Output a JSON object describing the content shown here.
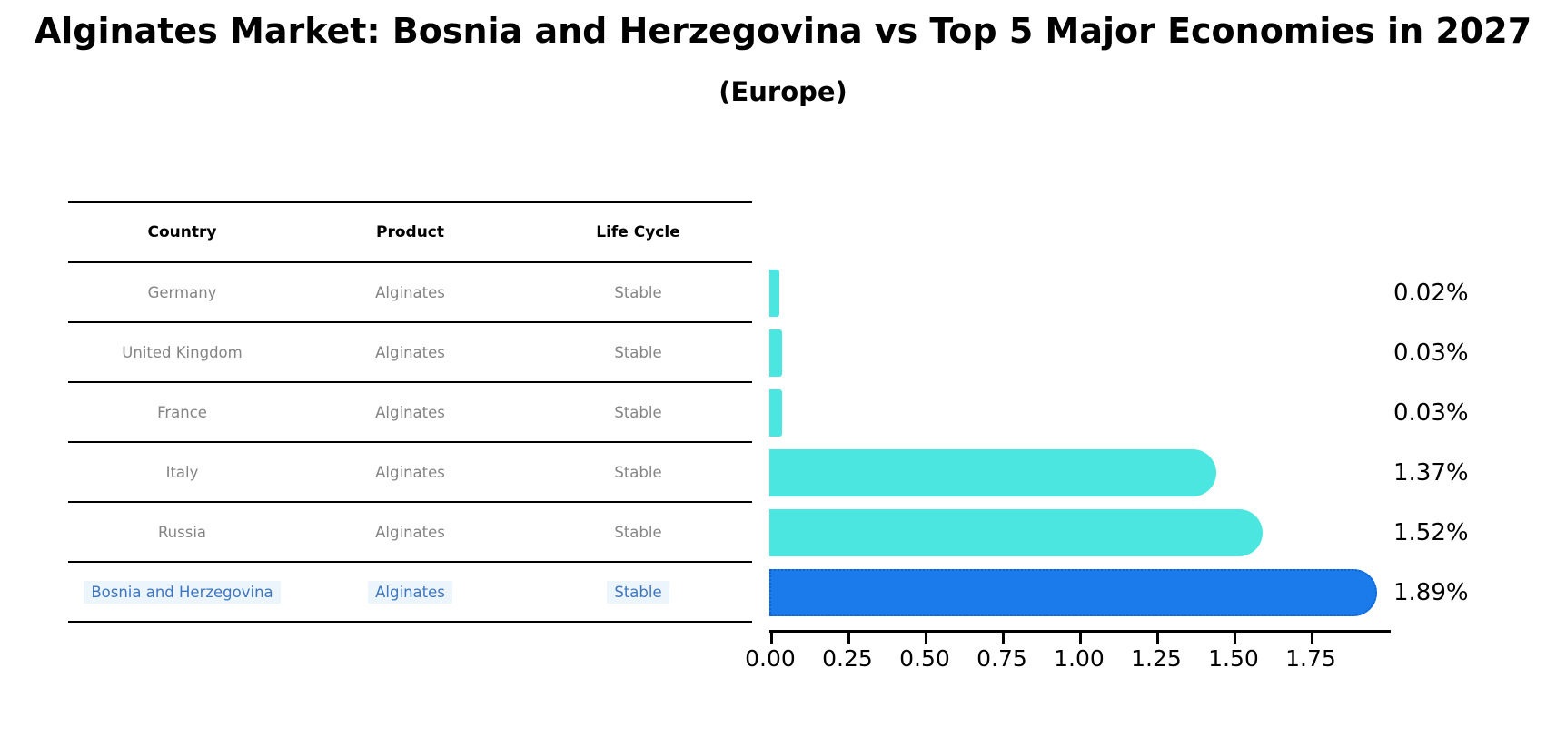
{
  "title": "Alginates Market: Bosnia and Herzegovina vs Top 5 Major Economies in 2027",
  "subtitle": "(Europe)",
  "table": {
    "headers": [
      "Country",
      "Product",
      "Life Cycle"
    ],
    "rows": [
      {
        "country": "Germany",
        "product": "Alginates",
        "life_cycle": "Stable",
        "highlight": false
      },
      {
        "country": "United Kingdom",
        "product": "Alginates",
        "life_cycle": "Stable",
        "highlight": false
      },
      {
        "country": "France",
        "product": "Alginates",
        "life_cycle": "Stable",
        "highlight": false
      },
      {
        "country": "Italy",
        "product": "Alginates",
        "life_cycle": "Stable",
        "highlight": false
      },
      {
        "country": "Russia",
        "product": "Alginates",
        "life_cycle": "Stable",
        "highlight": false
      },
      {
        "country": "Bosnia and Herzegovina",
        "product": "Alginates",
        "life_cycle": "Stable",
        "highlight": true
      }
    ]
  },
  "chart_data": {
    "type": "bar",
    "orientation": "horizontal",
    "title": "Alginates Market: Bosnia and Herzegovina vs Top 5 Major Economies in 2027",
    "subtitle": "(Europe)",
    "categories": [
      "Germany",
      "United Kingdom",
      "France",
      "Italy",
      "Russia",
      "Bosnia and Herzegovina"
    ],
    "values": [
      0.02,
      0.03,
      0.03,
      1.37,
      1.52,
      1.89
    ],
    "value_labels": [
      "0.02%",
      "0.03%",
      "0.03%",
      "1.37%",
      "1.52%",
      "1.89%"
    ],
    "highlight_index": 5,
    "x_tick_labels": [
      "0.00",
      "0.25",
      "0.50",
      "0.75",
      "1.00",
      "1.25",
      "1.50",
      "1.75"
    ],
    "x_tick_values": [
      0.0,
      0.25,
      0.5,
      0.75,
      1.0,
      1.25,
      1.5,
      1.75
    ],
    "xlim": [
      0,
      2.0
    ],
    "grid": false,
    "legend": false,
    "unit": "%"
  },
  "colors": {
    "bar": "#4be6e0",
    "highlight_bar": "#1b7bea",
    "highlight_bar_border": "#0f62d6",
    "row_text": "#848484",
    "highlight_text": "#3d76be",
    "highlight_text_background": "#ecf4fc",
    "header_text": "#000000",
    "axis": "#000000"
  }
}
